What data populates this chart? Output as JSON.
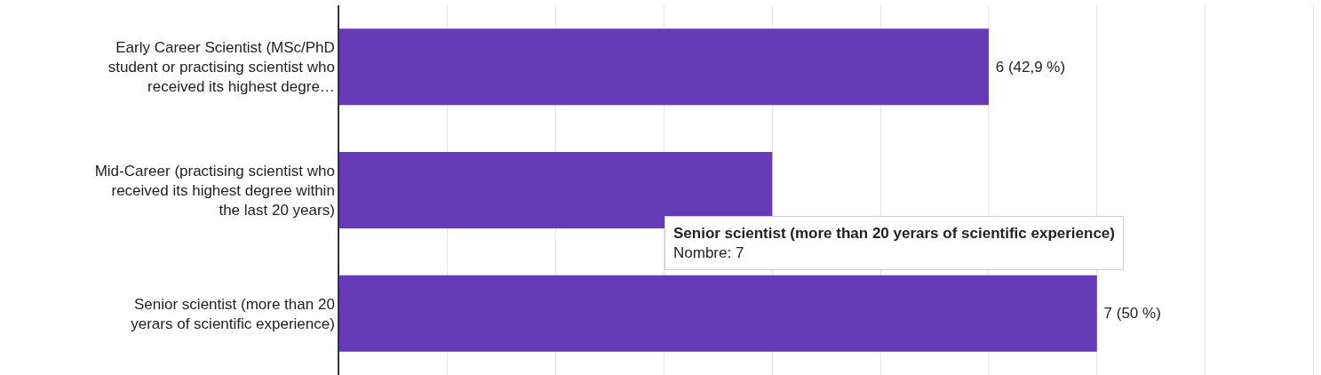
{
  "chart_data": {
    "type": "bar",
    "orientation": "horizontal",
    "categories": [
      "Early Career Scientist (MSc/PhD student or practising scientist who received its highest degre…",
      "Mid-Career (practising scientist who received its highest degree within the last 20 years)",
      "Senior scientist (more than 20 yerars of scientific experience)"
    ],
    "values": [
      6,
      4,
      7
    ],
    "xlim": [
      0,
      9.07
    ],
    "xticks": [
      {
        "value": 0,
        "label": null
      },
      {
        "value": 1,
        "label": null
      },
      {
        "value": 2,
        "label": null
      },
      {
        "value": 3,
        "label": null
      },
      {
        "value": 4,
        "label": null
      },
      {
        "value": 5,
        "label": null
      },
      {
        "value": 6,
        "label": null
      },
      {
        "value": 7,
        "label": null
      },
      {
        "value": 8,
        "label": null
      },
      {
        "value": 9,
        "label": null
      }
    ],
    "grid": "x",
    "value_labels": [
      "6 (42,9 %)",
      null,
      "7 (50 %)"
    ],
    "color": "#673ab7",
    "annotations": [
      "Senior scientist (more than 20 yerars of scientific experience)",
      "Nombre: 7"
    ]
  }
}
